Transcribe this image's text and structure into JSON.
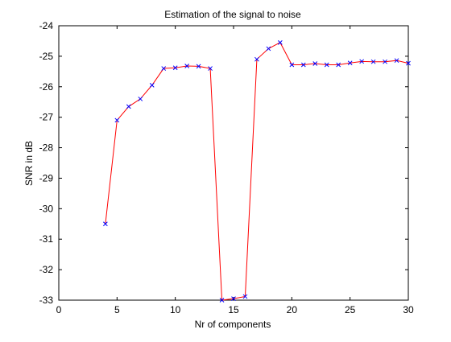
{
  "chart_data": {
    "type": "line",
    "title": "Estimation of the signal to noise",
    "xlabel": "Nr of components",
    "ylabel": "SNR in dB",
    "xlim": [
      0,
      30
    ],
    "ylim": [
      -33,
      -24
    ],
    "xticks": [
      0,
      5,
      10,
      15,
      20,
      25,
      30
    ],
    "yticks": [
      -24,
      -25,
      -26,
      -27,
      -28,
      -29,
      -30,
      -31,
      -32,
      -33
    ],
    "grid": false,
    "series": [
      {
        "line_color": "#ff0000",
        "marker": "x",
        "marker_color": "#0000ff",
        "x": [
          4,
          5,
          6,
          7,
          8,
          9,
          10,
          11,
          12,
          13,
          14,
          15,
          16,
          17,
          18,
          19,
          20,
          21,
          22,
          23,
          24,
          25,
          26,
          27,
          28,
          29,
          30
        ],
        "y": [
          -30.5,
          -27.1,
          -26.65,
          -26.4,
          -25.95,
          -25.4,
          -25.38,
          -25.32,
          -25.33,
          -25.4,
          -33.0,
          -32.95,
          -32.88,
          -25.1,
          -24.75,
          -24.55,
          -25.28,
          -25.28,
          -25.24,
          -25.28,
          -25.28,
          -25.22,
          -25.17,
          -25.18,
          -25.18,
          -25.14,
          -25.23
        ]
      }
    ]
  }
}
